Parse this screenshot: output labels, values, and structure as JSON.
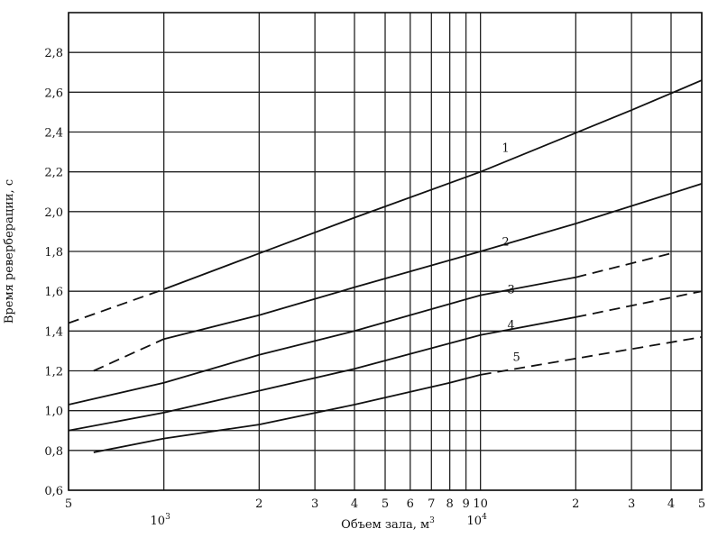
{
  "chart_data": {
    "type": "line",
    "xlabel": "Объем зала, м",
    "xlabel_superscript": "3",
    "ylabel": "Время реверберации, с",
    "x_scale": "log",
    "xlim": [
      500,
      50000
    ],
    "ylim": [
      0.6,
      3.0
    ],
    "grid": true,
    "x_ticks": [
      {
        "value": 500,
        "label": "5"
      },
      {
        "value": 2000,
        "label": "2"
      },
      {
        "value": 3000,
        "label": "3"
      },
      {
        "value": 4000,
        "label": "4"
      },
      {
        "value": 5000,
        "label": "5"
      },
      {
        "value": 6000,
        "label": "6"
      },
      {
        "value": 7000,
        "label": "7"
      },
      {
        "value": 8000,
        "label": "8"
      },
      {
        "value": 9000,
        "label": "9"
      },
      {
        "value": 10000,
        "label": "10"
      },
      {
        "value": 20000,
        "label": "2"
      },
      {
        "value": 30000,
        "label": "3"
      },
      {
        "value": 40000,
        "label": "4"
      },
      {
        "value": 50000,
        "label": "5"
      }
    ],
    "decade_labels": [
      {
        "value": 1000,
        "base": "10",
        "exp": "3"
      },
      {
        "value": 10000,
        "base": "10",
        "exp": "4"
      }
    ],
    "x_gridlines": [
      500,
      1000,
      2000,
      3000,
      4000,
      5000,
      6000,
      7000,
      8000,
      9000,
      10000,
      20000,
      30000,
      40000,
      50000
    ],
    "y_ticks": [
      {
        "value": 0.6,
        "label": "0,6"
      },
      {
        "value": 0.8,
        "label": "0,8"
      },
      {
        "value": 1.0,
        "label": "1,0"
      },
      {
        "value": 1.2,
        "label": "1,2"
      },
      {
        "value": 1.4,
        "label": "1,4"
      },
      {
        "value": 1.6,
        "label": "1,6"
      },
      {
        "value": 1.8,
        "label": "1,8"
      },
      {
        "value": 2.0,
        "label": "2,0"
      },
      {
        "value": 2.2,
        "label": "2,2"
      },
      {
        "value": 2.4,
        "label": "2,4"
      },
      {
        "value": 2.6,
        "label": "2,6"
      },
      {
        "value": 2.8,
        "label": "2,8"
      }
    ],
    "y_gridlines": [
      0.6,
      0.8,
      0.9,
      1.0,
      1.2,
      1.4,
      1.6,
      1.8,
      2.0,
      2.2,
      2.4,
      2.6,
      2.8
    ],
    "series": [
      {
        "name": "1",
        "label_at": [
          12000,
          2.3
        ],
        "segments": [
          {
            "style": "dashed",
            "points": [
              [
                500,
                1.44
              ],
              [
                1000,
                1.61
              ]
            ]
          },
          {
            "style": "solid",
            "points": [
              [
                1000,
                1.61
              ],
              [
                2000,
                1.79
              ],
              [
                4000,
                1.97
              ],
              [
                10000,
                2.2
              ],
              [
                30000,
                2.51
              ],
              [
                50000,
                2.66
              ]
            ]
          }
        ]
      },
      {
        "name": "2",
        "label_at": [
          12000,
          1.83
        ],
        "segments": [
          {
            "style": "dashed",
            "points": [
              [
                600,
                1.2
              ],
              [
                1000,
                1.36
              ]
            ]
          },
          {
            "style": "solid",
            "points": [
              [
                1000,
                1.36
              ],
              [
                2000,
                1.48
              ],
              [
                4000,
                1.62
              ],
              [
                10000,
                1.8
              ],
              [
                20000,
                1.94
              ],
              [
                50000,
                2.14
              ]
            ]
          }
        ]
      },
      {
        "name": "3",
        "label_at": [
          12500,
          1.59
        ],
        "segments": [
          {
            "style": "solid",
            "points": [
              [
                500,
                1.03
              ],
              [
                1000,
                1.14
              ],
              [
                2000,
                1.28
              ],
              [
                4000,
                1.4
              ],
              [
                10000,
                1.58
              ],
              [
                20000,
                1.67
              ]
            ]
          },
          {
            "style": "dashed",
            "points": [
              [
                20000,
                1.67
              ],
              [
                40000,
                1.79
              ]
            ]
          }
        ]
      },
      {
        "name": "4",
        "label_at": [
          12500,
          1.41
        ],
        "segments": [
          {
            "style": "solid",
            "points": [
              [
                500,
                0.9
              ],
              [
                1000,
                0.99
              ],
              [
                2000,
                1.1
              ],
              [
                4000,
                1.21
              ],
              [
                10000,
                1.38
              ],
              [
                20000,
                1.47
              ]
            ]
          },
          {
            "style": "dashed",
            "points": [
              [
                20000,
                1.47
              ],
              [
                50000,
                1.6
              ]
            ]
          }
        ]
      },
      {
        "name": "5",
        "label_at": [
          13000,
          1.25
        ],
        "segments": [
          {
            "style": "solid",
            "points": [
              [
                600,
                0.79
              ],
              [
                1000,
                0.86
              ],
              [
                2000,
                0.93
              ],
              [
                4000,
                1.03
              ],
              [
                8000,
                1.14
              ],
              [
                10000,
                1.18
              ]
            ]
          },
          {
            "style": "dashed",
            "points": [
              [
                10000,
                1.18
              ],
              [
                50000,
                1.37
              ]
            ]
          }
        ]
      }
    ]
  }
}
